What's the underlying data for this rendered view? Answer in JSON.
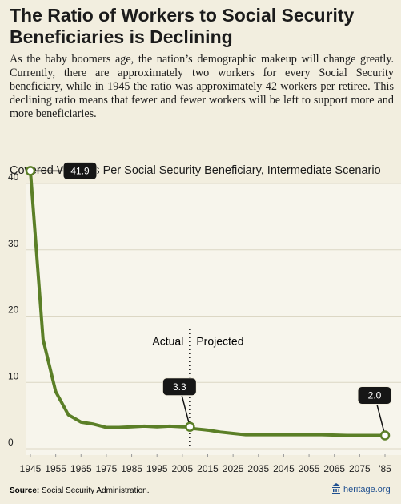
{
  "chart_data": {
    "type": "line",
    "title": "The Ratio of Workers to Social Security Beneficiaries is Declining",
    "subtitle": "As the baby boomers age, the nation’s demographic makeup will change greatly. Currently, there are approximately two workers for every Social Security beneficiary, while in 1945 the ratio was approximately 42 workers per retiree. This declining ratio means that fewer and fewer workers will be left to support more and more beneficiaries.",
    "chart_title": "Covered Workers Per Social Security Beneficiary, Intermediate Scenario",
    "x": [
      1945,
      1950,
      1955,
      1960,
      1965,
      1970,
      1975,
      1980,
      1985,
      1990,
      1995,
      2000,
      2005,
      2008,
      2010,
      2015,
      2020,
      2025,
      2030,
      2035,
      2040,
      2050,
      2060,
      2070,
      2080,
      2085
    ],
    "values": [
      41.9,
      16.5,
      8.6,
      5.1,
      4.0,
      3.7,
      3.2,
      3.2,
      3.3,
      3.4,
      3.3,
      3.4,
      3.3,
      3.3,
      3.0,
      2.8,
      2.5,
      2.3,
      2.1,
      2.1,
      2.1,
      2.1,
      2.1,
      2.0,
      2.0,
      2.0
    ],
    "value_labels": [
      "41.9",
      null,
      null,
      null,
      null,
      null,
      null,
      null,
      null,
      null,
      null,
      null,
      null,
      "3.3",
      null,
      null,
      null,
      null,
      null,
      null,
      null,
      null,
      null,
      null,
      null,
      "2.0"
    ],
    "color": "#5b7f27",
    "divider_x": 2008,
    "annotations": [
      "Actual",
      "Projected"
    ],
    "xlim": [
      1945,
      2085
    ],
    "ylim": [
      0,
      42
    ],
    "xticks": [
      1945,
      1955,
      1965,
      1975,
      1985,
      1995,
      2005,
      2015,
      2025,
      2035,
      2045,
      2055,
      2065,
      2075,
      {
        "value": 2085,
        "label": "'85"
      }
    ],
    "yticks": [
      0,
      10,
      20,
      30,
      40
    ],
    "grid": true,
    "source_label": "Source:",
    "source": "Social Security Administration.",
    "logo": "heritage.org"
  }
}
